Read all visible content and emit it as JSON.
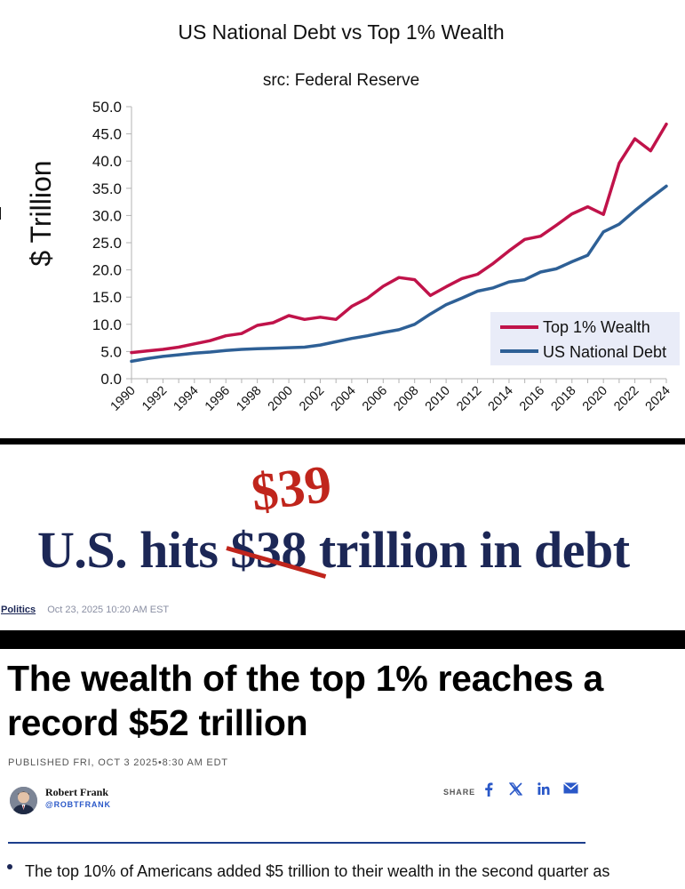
{
  "chart_data": {
    "type": "line",
    "title": "US National Debt vs Top 1% Wealth",
    "subtitle": "src: Federal Reserve",
    "ylabel": "$ Trillion",
    "xlabel": "",
    "ylim": [
      0,
      50
    ],
    "yticks": [
      "0.0",
      "5.0",
      "10.0",
      "15.0",
      "20.0",
      "25.0",
      "30.0",
      "35.0",
      "40.0",
      "45.0",
      "50.0"
    ],
    "xticks": [
      "1990",
      "1992",
      "1994",
      "1996",
      "1998",
      "2000",
      "2002",
      "2004",
      "2006",
      "2008",
      "2010",
      "2012",
      "2014",
      "2016",
      "2018",
      "2020",
      "2022",
      "2024"
    ],
    "x": [
      1990,
      1991,
      1992,
      1993,
      1994,
      1995,
      1996,
      1997,
      1998,
      1999,
      2000,
      2001,
      2002,
      2003,
      2004,
      2005,
      2006,
      2007,
      2008,
      2009,
      2010,
      2011,
      2012,
      2013,
      2014,
      2015,
      2016,
      2017,
      2018,
      2019,
      2020,
      2021,
      2022,
      2023,
      2024
    ],
    "grid": false,
    "legend_position": "bottom-right",
    "series": [
      {
        "name": "Top 1% Wealth",
        "color": "#c0134a",
        "values": [
          4.8,
          5.1,
          5.4,
          5.8,
          6.4,
          7.0,
          7.9,
          8.3,
          9.8,
          10.3,
          11.6,
          10.9,
          11.3,
          10.9,
          13.3,
          14.8,
          17.0,
          18.6,
          18.2,
          15.3,
          16.9,
          18.4,
          19.2,
          21.2,
          23.5,
          25.6,
          26.2,
          28.2,
          30.3,
          31.6,
          30.2,
          39.6,
          44.1,
          41.9,
          46.8
        ]
      },
      {
        "name": "US National Debt",
        "color": "#2e6096",
        "values": [
          3.2,
          3.7,
          4.1,
          4.4,
          4.7,
          4.9,
          5.2,
          5.4,
          5.5,
          5.6,
          5.7,
          5.8,
          6.2,
          6.8,
          7.4,
          7.9,
          8.5,
          9.0,
          10.0,
          11.9,
          13.6,
          14.8,
          16.1,
          16.7,
          17.8,
          18.2,
          19.6,
          20.2,
          21.5,
          22.7,
          27.0,
          28.4,
          30.9,
          33.2,
          35.4
        ]
      }
    ]
  },
  "headline1": {
    "prefix": "U.S. hits ",
    "struck": "$38",
    "suffix": " trillion in debt",
    "replacement": "$39",
    "category": "Politics",
    "datetime": "Oct 23, 2025 10:20 AM EST"
  },
  "headline2": {
    "title": "The wealth of the top 1% reaches a record $52 trillion",
    "published": "PUBLISHED FRI, OCT 3 2025•8:30 AM EDT",
    "author": "Robert Frank",
    "handle": "@ROBTFRANK",
    "share_label": "SHARE",
    "share_icons": [
      "facebook-icon",
      "x-icon",
      "linkedin-icon",
      "email-icon"
    ],
    "bullet": "The top 10% of Americans added $5 trillion to their wealth in the second quarter as"
  },
  "colors": {
    "headline_navy": "#1c2756",
    "strike_red": "#c0251c",
    "link_blue": "#2a58c8"
  }
}
